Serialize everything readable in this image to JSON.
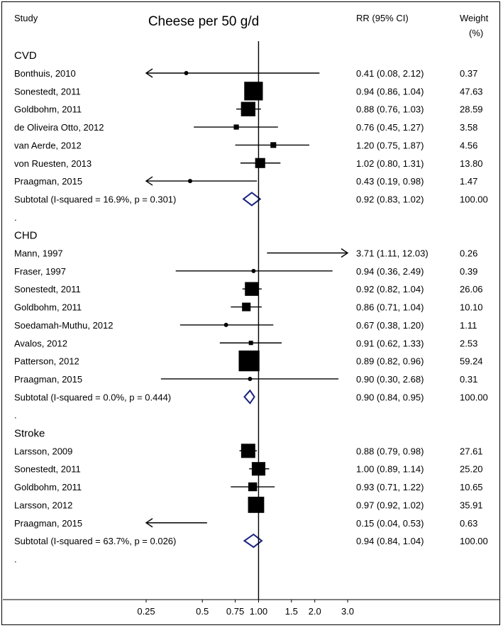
{
  "chart_data": {
    "type": "forest",
    "title": "Cheese per 50 g/d",
    "columns": {
      "study": "Study",
      "rr": "RR (95% CI)",
      "weight_line1": "Weight",
      "weight_line2": "(%)"
    },
    "x_scale": "log",
    "xlim": [
      0.25,
      3.0
    ],
    "null_value": 1.0,
    "xticks": [
      {
        "v": 0.25,
        "label": "0.25"
      },
      {
        "v": 0.5,
        "label": "0.5"
      },
      {
        "v": 0.75,
        "label": "0.75"
      },
      {
        "v": 1.0,
        "label": "1.00"
      },
      {
        "v": 1.5,
        "label": "1.5"
      },
      {
        "v": 2.0,
        "label": "2.0"
      },
      {
        "v": 3.0,
        "label": "3.0"
      }
    ],
    "groups": [
      {
        "name": "CVD",
        "studies": [
          {
            "study": "Bonthuis, 2010",
            "rr": 0.41,
            "lo": 0.08,
            "hi": 2.12,
            "ci_text": "0.41 (0.08, 2.12)",
            "weight": "0.37"
          },
          {
            "study": "Sonestedt, 2011",
            "rr": 0.94,
            "lo": 0.86,
            "hi": 1.04,
            "ci_text": "0.94 (0.86, 1.04)",
            "weight": "47.63"
          },
          {
            "study": "Goldbohm, 2011",
            "rr": 0.88,
            "lo": 0.76,
            "hi": 1.03,
            "ci_text": "0.88 (0.76, 1.03)",
            "weight": "28.59"
          },
          {
            "study": "de Oliveira Otto, 2012",
            "rr": 0.76,
            "lo": 0.45,
            "hi": 1.27,
            "ci_text": "0.76 (0.45, 1.27)",
            "weight": "3.58"
          },
          {
            "study": "van Aerde, 2012",
            "rr": 1.2,
            "lo": 0.75,
            "hi": 1.87,
            "ci_text": "1.20 (0.75, 1.87)",
            "weight": "4.56"
          },
          {
            "study": "von Ruesten, 2013",
            "rr": 1.02,
            "lo": 0.8,
            "hi": 1.31,
            "ci_text": "1.02 (0.80, 1.31)",
            "weight": "13.80"
          },
          {
            "study": "Praagman, 2015",
            "rr": 0.43,
            "lo": 0.19,
            "hi": 0.98,
            "ci_text": "0.43 (0.19, 0.98)",
            "weight": "1.47"
          }
        ],
        "subtotal": {
          "label": "Subtotal  (I-squared = 16.9%, p = 0.301)",
          "rr": 0.92,
          "lo": 0.83,
          "hi": 1.02,
          "ci_text": "0.92 (0.83, 1.02)",
          "weight": "100.00"
        }
      },
      {
        "name": "CHD",
        "studies": [
          {
            "study": "Mann, 1997",
            "rr": 3.71,
            "lo": 1.11,
            "hi": 12.03,
            "ci_text": "3.71 (1.11, 12.03)",
            "weight": "0.26"
          },
          {
            "study": "Fraser, 1997",
            "rr": 0.94,
            "lo": 0.36,
            "hi": 2.49,
            "ci_text": "0.94 (0.36, 2.49)",
            "weight": "0.39"
          },
          {
            "study": "Sonestedt, 2011",
            "rr": 0.92,
            "lo": 0.82,
            "hi": 1.04,
            "ci_text": "0.92 (0.82, 1.04)",
            "weight": "26.06"
          },
          {
            "study": "Goldbohm, 2011",
            "rr": 0.86,
            "lo": 0.71,
            "hi": 1.04,
            "ci_text": "0.86 (0.71, 1.04)",
            "weight": "10.10"
          },
          {
            "study": "Soedamah-Muthu, 2012",
            "rr": 0.67,
            "lo": 0.38,
            "hi": 1.2,
            "ci_text": "0.67 (0.38, 1.20)",
            "weight": "1.11"
          },
          {
            "study": "Avalos, 2012",
            "rr": 0.91,
            "lo": 0.62,
            "hi": 1.33,
            "ci_text": "0.91 (0.62, 1.33)",
            "weight": "2.53"
          },
          {
            "study": "Patterson, 2012",
            "rr": 0.89,
            "lo": 0.82,
            "hi": 0.96,
            "ci_text": "0.89 (0.82, 0.96)",
            "weight": "59.24"
          },
          {
            "study": "Praagman, 2015",
            "rr": 0.9,
            "lo": 0.3,
            "hi": 2.68,
            "ci_text": "0.90 (0.30, 2.68)",
            "weight": "0.31"
          }
        ],
        "subtotal": {
          "label": "Subtotal  (I-squared = 0.0%, p = 0.444)",
          "rr": 0.9,
          "lo": 0.84,
          "hi": 0.95,
          "ci_text": "0.90 (0.84, 0.95)",
          "weight": "100.00"
        }
      },
      {
        "name": "Stroke",
        "studies": [
          {
            "study": "Larsson, 2009",
            "rr": 0.88,
            "lo": 0.79,
            "hi": 0.98,
            "ci_text": "0.88 (0.79, 0.98)",
            "weight": "27.61"
          },
          {
            "study": "Sonestedt, 2011",
            "rr": 1.0,
            "lo": 0.89,
            "hi": 1.14,
            "ci_text": "1.00 (0.89, 1.14)",
            "weight": "25.20"
          },
          {
            "study": "Goldbohm, 2011",
            "rr": 0.93,
            "lo": 0.71,
            "hi": 1.22,
            "ci_text": "0.93 (0.71, 1.22)",
            "weight": "10.65"
          },
          {
            "study": "Larsson, 2012",
            "rr": 0.97,
            "lo": 0.92,
            "hi": 1.02,
            "ci_text": "0.97 (0.92, 1.02)",
            "weight": "35.91"
          },
          {
            "study": "Praagman, 2015",
            "rr": 0.15,
            "lo": 0.04,
            "hi": 0.53,
            "ci_text": "0.15 (0.04, 0.53)",
            "weight": "0.63"
          }
        ],
        "subtotal": {
          "label": "Subtotal  (I-squared = 63.7%, p = 0.026)",
          "rr": 0.94,
          "lo": 0.84,
          "hi": 1.04,
          "ci_text": "0.94 (0.84, 1.04)",
          "weight": "100.00"
        }
      }
    ],
    "group_separator": ".",
    "colors": {
      "marker": "#000000",
      "diamond": "#1a237e",
      "line": "#000000"
    }
  }
}
